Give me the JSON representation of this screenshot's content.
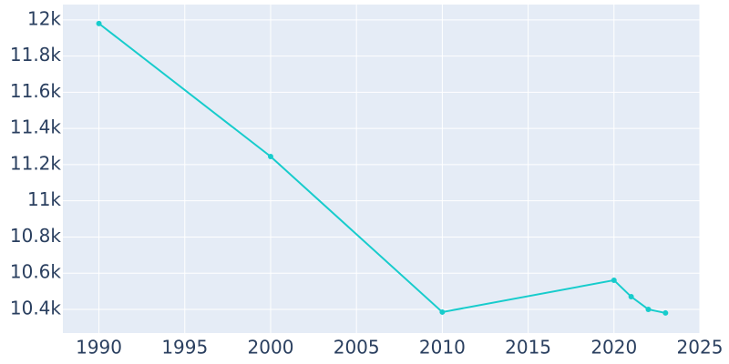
{
  "chart_data": {
    "type": "line",
    "x": [
      1990,
      2000,
      2010,
      2020,
      2021,
      2022,
      2023
    ],
    "series": [
      {
        "color": "#17cccc",
        "values": [
          11980,
          11245,
          10385,
          10561,
          10470,
          10400,
          10380
        ]
      }
    ],
    "xlim": [
      1987.9,
      2025
    ],
    "xticks": [
      1990,
      1995,
      2000,
      2005,
      2010,
      2015,
      2020,
      2025
    ],
    "ylim": [
      10269,
      12085
    ],
    "yticks": [
      {
        "value": 10400,
        "label": "10.4k"
      },
      {
        "value": 10600,
        "label": "10.6k"
      },
      {
        "value": 10800,
        "label": "10.8k"
      },
      {
        "value": 11000,
        "label": "11k"
      },
      {
        "value": 11200,
        "label": "11.2k"
      },
      {
        "value": 11400,
        "label": "11.4k"
      },
      {
        "value": 11600,
        "label": "11.6k"
      },
      {
        "value": 11800,
        "label": "11.8k"
      },
      {
        "value": 12000,
        "label": "12k"
      }
    ],
    "grid": true
  }
}
